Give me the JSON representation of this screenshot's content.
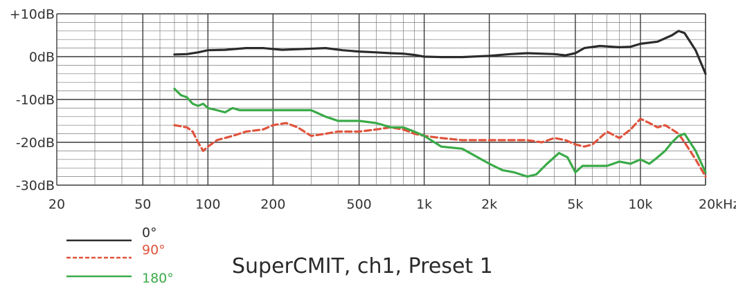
{
  "chart_data": {
    "type": "line",
    "title": "SuperCMIT, ch1, Preset 1",
    "xscale": "log",
    "xlim": [
      20,
      20000
    ],
    "ylim": [
      -30,
      10
    ],
    "grid": true,
    "legend_position": "bottom-left",
    "x_ticks": [
      {
        "value": 20,
        "label": "20"
      },
      {
        "value": 50,
        "label": "50"
      },
      {
        "value": 100,
        "label": "100"
      },
      {
        "value": 200,
        "label": "200"
      },
      {
        "value": 500,
        "label": "500"
      },
      {
        "value": 1000,
        "label": "1k"
      },
      {
        "value": 2000,
        "label": "2k"
      },
      {
        "value": 5000,
        "label": "5k"
      },
      {
        "value": 10000,
        "label": "10k"
      },
      {
        "value": 20000,
        "label": "20kHz"
      }
    ],
    "y_ticks": [
      {
        "value": 10,
        "label": "+10dB"
      },
      {
        "value": 0,
        "label": "0dB"
      },
      {
        "value": -10,
        "label": "-10dB"
      },
      {
        "value": -20,
        "label": "-20dB"
      },
      {
        "value": -30,
        "label": "-30dB"
      }
    ],
    "series": [
      {
        "name": "0°",
        "color": "#2b2b2b",
        "dash": "solid",
        "x": [
          70,
          80,
          90,
          100,
          120,
          150,
          180,
          220,
          280,
          350,
          420,
          500,
          600,
          700,
          800,
          900,
          1000,
          1200,
          1500,
          2000,
          2500,
          3000,
          4000,
          4500,
          5000,
          5500,
          6500,
          8000,
          9000,
          10000,
          12000,
          14000,
          15000,
          16000,
          18000,
          20000
        ],
        "y": [
          0.5,
          0.6,
          1.0,
          1.5,
          1.6,
          2.0,
          2.0,
          1.6,
          1.8,
          2.0,
          1.5,
          1.2,
          1.0,
          0.8,
          0.7,
          0.4,
          0.0,
          -0.1,
          -0.1,
          0.2,
          0.6,
          0.8,
          0.6,
          0.3,
          0.8,
          2.0,
          2.5,
          2.2,
          2.3,
          3.0,
          3.5,
          5.0,
          6.0,
          5.5,
          1.5,
          -4.0
        ]
      },
      {
        "name": "90°",
        "color": "#e0533c",
        "dash": "dashed",
        "x": [
          70,
          80,
          85,
          90,
          95,
          100,
          110,
          130,
          150,
          180,
          200,
          230,
          260,
          300,
          350,
          400,
          500,
          600,
          700,
          800,
          900,
          1000,
          1200,
          1500,
          2000,
          2500,
          3000,
          3500,
          4000,
          4500,
          5000,
          5500,
          6000,
          7000,
          8000,
          9000,
          10000,
          11000,
          12000,
          13000,
          14000,
          15000,
          16000,
          18000,
          20000
        ],
        "y": [
          -16.0,
          -16.5,
          -17.5,
          -20.0,
          -22.0,
          -21.0,
          -19.5,
          -18.5,
          -17.5,
          -17.0,
          -16.0,
          -15.5,
          -16.5,
          -18.5,
          -18.0,
          -17.5,
          -17.5,
          -17.0,
          -16.5,
          -17.0,
          -18.0,
          -18.5,
          -19.0,
          -19.5,
          -19.5,
          -19.5,
          -19.5,
          -20.0,
          -19.0,
          -19.5,
          -20.5,
          -21.0,
          -20.5,
          -17.5,
          -19.0,
          -17.0,
          -14.5,
          -15.5,
          -16.5,
          -16.0,
          -17.0,
          -18.0,
          -20.0,
          -24.0,
          -28.0
        ]
      },
      {
        "name": "180°",
        "color": "#3aaa48",
        "dash": "solid",
        "x": [
          70,
          75,
          80,
          85,
          90,
          95,
          100,
          110,
          120,
          130,
          140,
          160,
          200,
          250,
          300,
          350,
          400,
          500,
          600,
          700,
          800,
          900,
          1000,
          1200,
          1500,
          2000,
          2300,
          2600,
          3000,
          3300,
          3700,
          4200,
          4600,
          5000,
          5400,
          6000,
          7000,
          8000,
          9000,
          10000,
          11000,
          12000,
          13000,
          14000,
          15000,
          16000,
          18000,
          20000
        ],
        "y": [
          -7.5,
          -9.0,
          -9.5,
          -11.0,
          -11.5,
          -11.0,
          -12.0,
          -12.5,
          -13.0,
          -12.0,
          -12.5,
          -12.5,
          -12.5,
          -12.5,
          -12.5,
          -14.0,
          -15.0,
          -15.0,
          -15.5,
          -16.5,
          -16.5,
          -17.5,
          -18.5,
          -21.0,
          -21.5,
          -25.0,
          -26.5,
          -27.0,
          -28.0,
          -27.5,
          -25.0,
          -22.5,
          -23.5,
          -27.0,
          -25.5,
          -25.5,
          -25.5,
          -24.5,
          -25.0,
          -24.0,
          -25.0,
          -23.5,
          -22.0,
          -20.0,
          -18.5,
          -18.0,
          -22.0,
          -27.0
        ]
      }
    ]
  }
}
